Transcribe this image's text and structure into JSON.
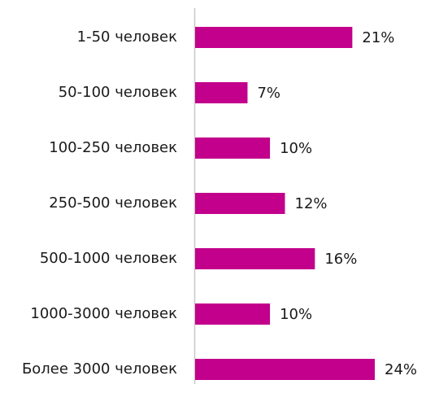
{
  "chart_data": {
    "type": "bar",
    "orientation": "horizontal",
    "categories": [
      "1-50 человек",
      "50-100 человек",
      "100-250 человек",
      "250-500 человек",
      "500-1000 человек",
      "1000-3000 человек",
      "Более 3000 человек"
    ],
    "values": [
      21,
      7,
      10,
      12,
      16,
      10,
      24
    ],
    "value_labels": [
      "21%",
      "7%",
      "10%",
      "12%",
      "16%",
      "10%",
      "24%"
    ],
    "color": "#c2008b"
  }
}
